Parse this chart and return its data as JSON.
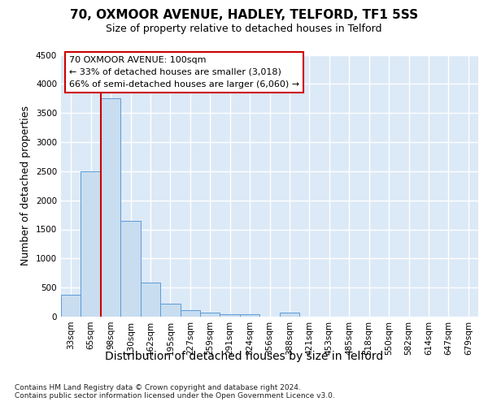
{
  "title1": "70, OXMOOR AVENUE, HADLEY, TELFORD, TF1 5SS",
  "title2": "Size of property relative to detached houses in Telford",
  "xlabel": "Distribution of detached houses by size in Telford",
  "ylabel": "Number of detached properties",
  "footnote": "Contains HM Land Registry data © Crown copyright and database right 2024.\nContains public sector information licensed under the Open Government Licence v3.0.",
  "bar_labels": [
    "33sqm",
    "65sqm",
    "98sqm",
    "130sqm",
    "162sqm",
    "195sqm",
    "227sqm",
    "259sqm",
    "291sqm",
    "324sqm",
    "356sqm",
    "388sqm",
    "421sqm",
    "453sqm",
    "485sqm",
    "518sqm",
    "550sqm",
    "582sqm",
    "614sqm",
    "647sqm",
    "679sqm"
  ],
  "bar_values": [
    370,
    2500,
    3750,
    1640,
    590,
    230,
    110,
    65,
    45,
    45,
    0,
    65,
    0,
    0,
    0,
    0,
    0,
    0,
    0,
    0,
    0
  ],
  "bar_color": "#c8ddf0",
  "bar_edge_color": "#5b9bd5",
  "ylim_max": 4500,
  "yticks": [
    0,
    500,
    1000,
    1500,
    2000,
    2500,
    3000,
    3500,
    4000,
    4500
  ],
  "red_line_bin_index": 2,
  "annotation_title": "70 OXMOOR AVENUE: 100sqm",
  "annotation_line1": "← 33% of detached houses are smaller (3,018)",
  "annotation_line2": "66% of semi-detached houses are larger (6,060) →",
  "annotation_color": "#cc0000",
  "plot_bg_color": "#dce9f7",
  "fig_bg_color": "#ffffff",
  "grid_color": "#ffffff",
  "title1_fontsize": 11,
  "title2_fontsize": 9,
  "ylabel_fontsize": 9,
  "xlabel_fontsize": 10,
  "footnote_fontsize": 6.5,
  "tick_fontsize": 7.5,
  "ann_fontsize": 8
}
